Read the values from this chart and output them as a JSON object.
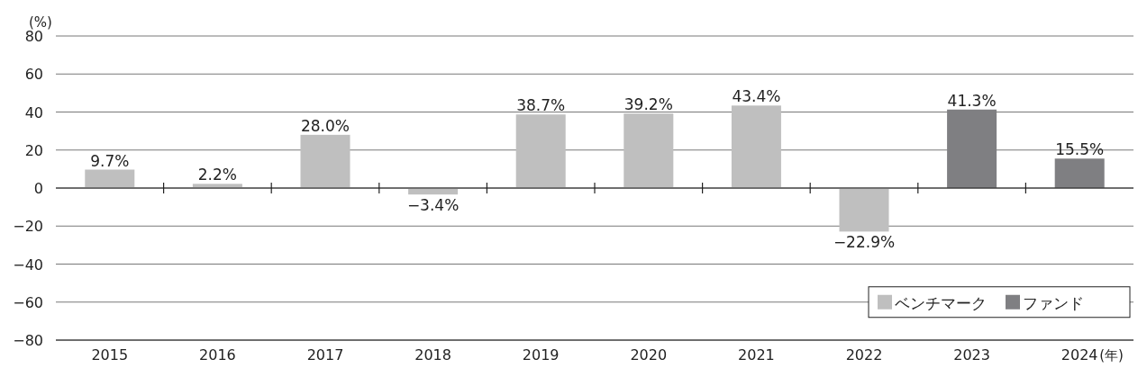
{
  "chart_data": {
    "type": "bar",
    "ylabel": "(%)",
    "xlabel": "(年)",
    "categories": [
      "2015",
      "2016",
      "2017",
      "2018",
      "2019",
      "2020",
      "2021",
      "2022",
      "2023",
      "2024"
    ],
    "series": [
      {
        "name": "ベンチマーク",
        "color": "#bfbfbf",
        "values": [
          9.7,
          2.2,
          28.0,
          -3.4,
          38.7,
          39.2,
          43.4,
          -22.9,
          null,
          null
        ],
        "value_labels": [
          "9.7%",
          "2.2%",
          "28.0%",
          "−3.4%",
          "38.7%",
          "39.2%",
          "43.4%",
          "−22.9%",
          null,
          null
        ]
      },
      {
        "name": "ファンド",
        "color": "#7f7f82",
        "values": [
          null,
          null,
          null,
          null,
          null,
          null,
          null,
          null,
          41.3,
          15.5
        ],
        "value_labels": [
          null,
          null,
          null,
          null,
          null,
          null,
          null,
          null,
          "41.3%",
          "15.5%"
        ]
      }
    ],
    "ylim": [
      -80,
      80
    ],
    "yticks": [
      {
        "value": -80,
        "label": "−80"
      },
      {
        "value": -60,
        "label": "−60"
      },
      {
        "value": -40,
        "label": "−40"
      },
      {
        "value": -20,
        "label": "−20"
      },
      0,
      20,
      40,
      60,
      80
    ],
    "grid": "y",
    "legend": "bottom right"
  }
}
